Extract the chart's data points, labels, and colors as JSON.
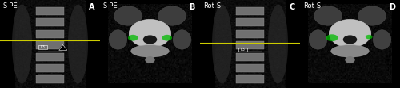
{
  "panels": [
    {
      "label": "A",
      "tag": "S-PE",
      "type": "coronal_spine"
    },
    {
      "label": "B",
      "tag": "S-PE",
      "type": "axial_spine"
    },
    {
      "label": "C",
      "tag": "Rot-S",
      "type": "coronal_spine_rot"
    },
    {
      "label": "D",
      "tag": "Rot-S",
      "type": "axial_spine_rot"
    }
  ],
  "n_cols": 4,
  "figsize": [
    5.0,
    1.11
  ],
  "dpi": 100,
  "bg_color": "#000000",
  "label_color": "#ffffff",
  "tag_color": "#ffffff",
  "divider_color": "#888888",
  "label_fontsize": 7,
  "tag_fontsize": 6,
  "yellow_line_color": "#cccc00",
  "green_highlight_color": "#00bb00"
}
